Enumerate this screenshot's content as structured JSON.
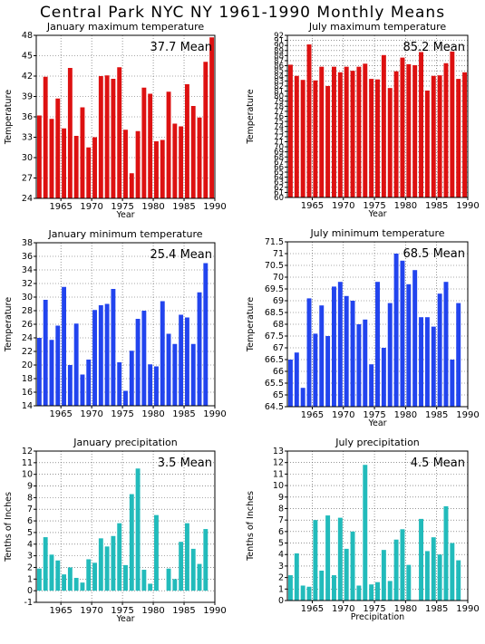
{
  "title": "Central Park NYC NY   1961-1990 Monthly Means",
  "chart_data": [
    {
      "type": "bar",
      "title": "January maximum temperature",
      "annotation": "37.7 Mean",
      "xlabel": "Year",
      "ylabel": "Temperature",
      "ylim": [
        24,
        48
      ],
      "yticks": [
        24,
        27,
        30,
        33,
        36,
        39,
        42,
        45,
        48
      ],
      "xlim": [
        1961,
        1990
      ],
      "xticks": [
        1965,
        1970,
        1975,
        1980,
        1985,
        1990
      ],
      "color": "#dd1111",
      "grid": true,
      "x": [
        1962,
        1963,
        1964,
        1965,
        1966,
        1967,
        1968,
        1969,
        1970,
        1971,
        1972,
        1973,
        1974,
        1975,
        1976,
        1977,
        1978,
        1979,
        1980,
        1981,
        1982,
        1983,
        1984,
        1985,
        1986,
        1987,
        1988,
        1989,
        1990
      ],
      "values": [
        36.2,
        41.9,
        35.7,
        38.7,
        34.3,
        43.2,
        33.2,
        37.4,
        31.5,
        33.0,
        42.0,
        42.1,
        41.6,
        43.3,
        34.1,
        27.7,
        33.9,
        40.3,
        39.4,
        32.4,
        32.6,
        39.7,
        35.0,
        34.6,
        40.8,
        37.6,
        35.9,
        44.1,
        47.7
      ]
    },
    {
      "type": "bar",
      "title": "July maximum temperature",
      "annotation": "85.2 Mean",
      "xlabel": "Year",
      "ylabel": "Temperature",
      "ylim": [
        60,
        92
      ],
      "yticks": [
        60,
        61,
        62,
        63,
        64,
        65,
        66,
        67,
        68,
        69,
        70,
        71,
        72,
        73,
        74,
        75,
        76,
        77,
        78,
        79,
        80,
        81,
        82,
        83,
        84,
        85,
        86,
        87,
        88,
        89,
        90,
        91,
        92
      ],
      "yticklabels": [
        "60",
        "61",
        "62",
        "63",
        "64",
        "65",
        "66",
        "67",
        "68",
        "69",
        "70",
        "71",
        "72",
        "73",
        "74",
        "75",
        "76",
        "77",
        "78",
        "79",
        "80",
        "81",
        "82",
        "83",
        "84",
        "85",
        "86",
        "87",
        "88",
        "89",
        "90",
        "91",
        "92"
      ],
      "xlim": [
        1961,
        1990
      ],
      "xticks": [
        1965,
        1970,
        1975,
        1980,
        1985,
        1990
      ],
      "color": "#dd1111",
      "grid": true,
      "x": [
        1962,
        1963,
        1964,
        1965,
        1966,
        1967,
        1968,
        1969,
        1970,
        1971,
        1972,
        1973,
        1974,
        1975,
        1976,
        1977,
        1978,
        1979,
        1980,
        1981,
        1982,
        1983,
        1984,
        1985,
        1986,
        1987,
        1988,
        1989,
        1990
      ],
      "values": [
        86.2,
        84.0,
        83.2,
        90.2,
        83.1,
        85.8,
        82.0,
        85.8,
        84.7,
        85.8,
        85.0,
        85.8,
        86.4,
        83.4,
        83.3,
        88.1,
        81.6,
        84.9,
        87.6,
        86.3,
        86.1,
        88.7,
        81.1,
        84.0,
        84.1,
        86.5,
        88.8,
        83.4,
        84.7
      ]
    },
    {
      "type": "bar",
      "title": "January minimum temperature",
      "annotation": "25.4 Mean",
      "xlabel": "",
      "ylabel": "Temperature",
      "ylim": [
        14,
        38
      ],
      "yticks": [
        14,
        16,
        18,
        20,
        22,
        24,
        26,
        28,
        30,
        32,
        34,
        36,
        38
      ],
      "xlim": [
        1961,
        1990
      ],
      "xticks": [
        1965,
        1970,
        1975,
        1980,
        1985,
        1990
      ],
      "color": "#2244ee",
      "grid": true,
      "x": [
        1962,
        1963,
        1964,
        1965,
        1966,
        1967,
        1968,
        1969,
        1970,
        1971,
        1972,
        1973,
        1974,
        1975,
        1976,
        1977,
        1978,
        1979,
        1980,
        1981,
        1982,
        1983,
        1984,
        1985,
        1986,
        1987,
        1988,
        1989,
        1990
      ],
      "values": [
        24.0,
        29.6,
        23.7,
        25.8,
        31.5,
        20.0,
        26.1,
        18.6,
        20.8,
        28.1,
        28.8,
        29.0,
        31.2,
        20.4,
        16.2,
        22.1,
        26.8,
        28.0,
        20.1,
        19.8,
        29.4,
        24.6,
        23.1,
        27.4,
        27.0,
        23.1,
        30.7,
        35.0,
        null
      ]
    },
    {
      "type": "bar",
      "title": "July minimum temperature",
      "annotation": "68.5 Mean",
      "xlabel": "Year",
      "ylabel": "Temperature",
      "ylim": [
        64.5,
        71.5
      ],
      "yticks": [
        64.5,
        65,
        65.5,
        66,
        66.5,
        67,
        67.5,
        68,
        68.5,
        69,
        69.5,
        70,
        70.5,
        71,
        71.5
      ],
      "yticklabels": [
        "64.5",
        "65",
        "65.5",
        "66",
        "66.5",
        "67",
        "67.5",
        "68",
        "68.5",
        "69",
        "69.5",
        "70",
        "70.5",
        "71",
        "71.5"
      ],
      "xlim": [
        1961,
        1990
      ],
      "xticks": [
        1965,
        1970,
        1975,
        1980,
        1985,
        1990
      ],
      "color": "#2244ee",
      "grid": true,
      "x": [
        1962,
        1963,
        1964,
        1965,
        1966,
        1967,
        1968,
        1969,
        1970,
        1971,
        1972,
        1973,
        1974,
        1975,
        1976,
        1977,
        1978,
        1979,
        1980,
        1981,
        1982,
        1983,
        1984,
        1985,
        1986,
        1987,
        1988,
        1989,
        1990
      ],
      "values": [
        66.5,
        66.8,
        65.3,
        69.1,
        67.6,
        68.8,
        67.5,
        69.6,
        69.8,
        69.2,
        69.0,
        68.0,
        68.2,
        66.3,
        69.8,
        67.0,
        68.9,
        71.0,
        70.7,
        69.7,
        70.3,
        68.3,
        68.3,
        67.9,
        69.3,
        69.8,
        66.5,
        68.9,
        null
      ]
    },
    {
      "type": "bar",
      "title": "January precipitation",
      "annotation": "3.5 Mean",
      "xlabel": "Year",
      "ylabel": "Tenths of Inches",
      "ylim": [
        -1,
        12
      ],
      "yticks": [
        -1,
        0,
        1,
        2,
        3,
        4,
        5,
        6,
        7,
        8,
        9,
        10,
        11,
        12
      ],
      "xlim": [
        1961,
        1990
      ],
      "xticks": [
        1965,
        1970,
        1975,
        1980,
        1985,
        1990
      ],
      "color": "#22bbbb",
      "grid": true,
      "x": [
        1962,
        1963,
        1964,
        1965,
        1966,
        1967,
        1968,
        1969,
        1970,
        1971,
        1972,
        1973,
        1974,
        1975,
        1976,
        1977,
        1978,
        1979,
        1980,
        1981,
        1982,
        1983,
        1984,
        1985,
        1986,
        1987,
        1988,
        1989,
        1990
      ],
      "values": [
        1.9,
        4.6,
        3.1,
        2.6,
        1.4,
        2.0,
        1.1,
        0.7,
        2.7,
        2.4,
        4.5,
        3.8,
        4.7,
        5.8,
        2.2,
        8.3,
        10.5,
        1.8,
        0.6,
        6.5,
        null,
        1.9,
        1.0,
        4.2,
        5.8,
        3.6,
        2.3,
        5.3,
        null
      ]
    },
    {
      "type": "bar",
      "title": "July precipitation",
      "annotation": "4.5 Mean",
      "xlabel": "Precipitation",
      "ylabel": "Tenths of Inches",
      "ylim": [
        0,
        13
      ],
      "yticks": [
        0,
        1,
        2,
        3,
        4,
        5,
        6,
        7,
        8,
        9,
        10,
        11,
        12,
        13
      ],
      "xlim": [
        1961,
        1990
      ],
      "xticks": [
        1965,
        1970,
        1975,
        1980,
        1985,
        1990
      ],
      "color": "#22bbbb",
      "grid": true,
      "x": [
        1962,
        1963,
        1964,
        1965,
        1966,
        1967,
        1968,
        1969,
        1970,
        1971,
        1972,
        1973,
        1974,
        1975,
        1976,
        1977,
        1978,
        1979,
        1980,
        1981,
        1982,
        1983,
        1984,
        1985,
        1986,
        1987,
        1988,
        1989,
        1990
      ],
      "values": [
        2.2,
        4.1,
        1.3,
        1.2,
        7.0,
        2.6,
        7.4,
        2.2,
        7.2,
        4.5,
        6.0,
        1.3,
        11.8,
        1.4,
        1.6,
        4.4,
        1.7,
        5.3,
        6.2,
        3.1,
        null,
        7.1,
        4.3,
        5.5,
        4.0,
        8.2,
        5.0,
        3.5,
        null
      ]
    }
  ]
}
